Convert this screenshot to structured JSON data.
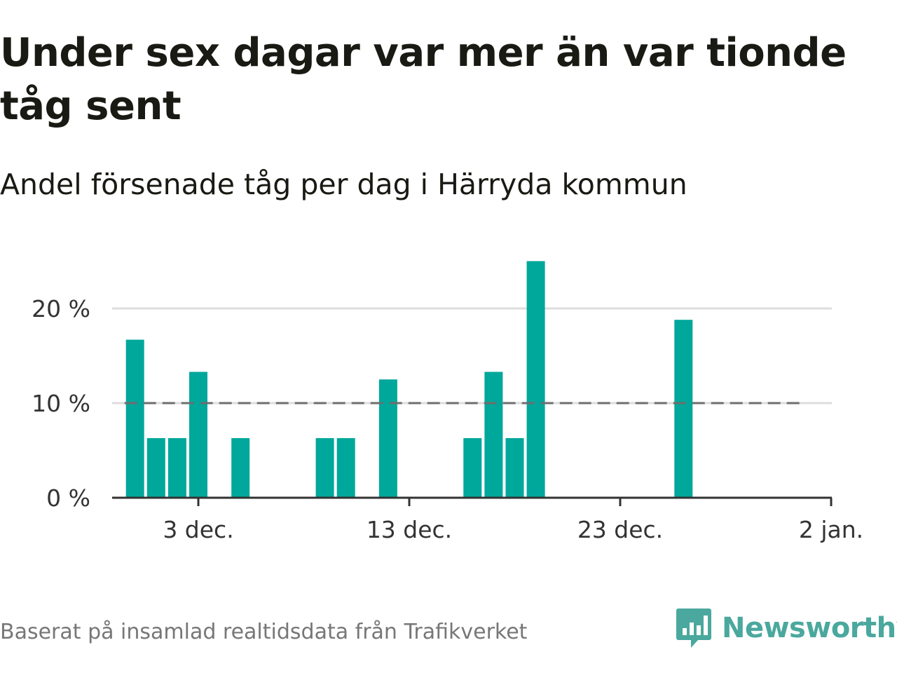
{
  "header": {
    "title": "Under sex dagar var mer än var tionde tåg sent",
    "subtitle": "Andel försenade tåg per dag i Härryda kommun"
  },
  "footer": {
    "source": "Baserat på insamlad realtidsdata från Trafikverket",
    "brand_name": "Newsworthy",
    "brand_icon": "bar-chart-speech-bubble-icon"
  },
  "colors": {
    "bar": "#00a79b",
    "gridline": "#dddddd",
    "axis": "#333333",
    "reference_line": "#6e6e6e",
    "brand": "#4aa89e"
  },
  "chart_data": {
    "type": "bar",
    "x_axis": {
      "range": [
        "2023-11-28",
        "2024-01-02"
      ],
      "ticks": [
        {
          "date": "2023-12-03",
          "label": "3 dec."
        },
        {
          "date": "2023-12-13",
          "label": "13 dec."
        },
        {
          "date": "2023-12-23",
          "label": "23 dec."
        },
        {
          "date": "2024-01-02",
          "label": "2 jan."
        }
      ]
    },
    "y_axis": {
      "range": [
        0,
        25
      ],
      "ticks": [
        {
          "value": 0,
          "label": "0 %"
        },
        {
          "value": 10,
          "label": "10 %"
        },
        {
          "value": 20,
          "label": "20 %"
        }
      ],
      "unit": "%"
    },
    "grid": true,
    "reference_line": {
      "value": 10,
      "from": "2023-11-30",
      "to": "2024-01-01",
      "style": "dashed"
    },
    "series": [
      {
        "values": [
          {
            "date": "2023-11-30",
            "value": 16.7
          },
          {
            "date": "2023-12-01",
            "value": 6.3
          },
          {
            "date": "2023-12-02",
            "value": 6.3
          },
          {
            "date": "2023-12-03",
            "value": 13.3
          },
          {
            "date": "2023-12-05",
            "value": 6.3
          },
          {
            "date": "2023-12-09",
            "value": 6.3
          },
          {
            "date": "2023-12-10",
            "value": 6.3
          },
          {
            "date": "2023-12-12",
            "value": 12.5
          },
          {
            "date": "2023-12-16",
            "value": 6.3
          },
          {
            "date": "2023-12-17",
            "value": 13.3
          },
          {
            "date": "2023-12-18",
            "value": 6.3
          },
          {
            "date": "2023-12-19",
            "value": 25.0
          },
          {
            "date": "2023-12-26",
            "value": 18.8
          }
        ]
      }
    ]
  }
}
